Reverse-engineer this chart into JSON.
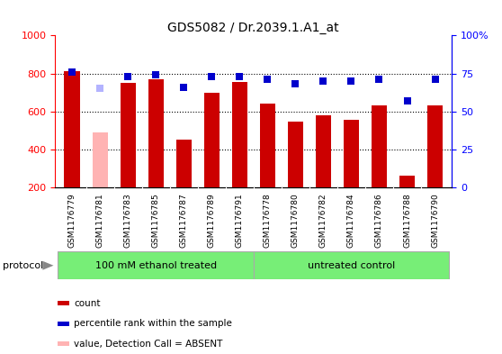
{
  "title": "GDS5082 / Dr.2039.1.A1_at",
  "samples": [
    "GSM1176779",
    "GSM1176781",
    "GSM1176783",
    "GSM1176785",
    "GSM1176787",
    "GSM1176789",
    "GSM1176791",
    "GSM1176778",
    "GSM1176780",
    "GSM1176782",
    "GSM1176784",
    "GSM1176786",
    "GSM1176788",
    "GSM1176790"
  ],
  "count_values": [
    810,
    490,
    750,
    770,
    450,
    700,
    755,
    640,
    548,
    578,
    558,
    632,
    265,
    632
  ],
  "count_absent": [
    false,
    true,
    false,
    false,
    false,
    false,
    false,
    false,
    false,
    false,
    false,
    false,
    false,
    false
  ],
  "rank_values": [
    76,
    65,
    73,
    74,
    66,
    73,
    73,
    71,
    68,
    70,
    70,
    71,
    57,
    71
  ],
  "rank_absent": [
    false,
    true,
    false,
    false,
    false,
    false,
    false,
    false,
    false,
    false,
    false,
    false,
    false,
    false
  ],
  "count_color_normal": "#cc0000",
  "count_color_absent": "#ffb3b3",
  "rank_color_normal": "#0000cc",
  "rank_color_absent": "#b3b3ff",
  "ylim_left": [
    200,
    1000
  ],
  "ylim_right": [
    0,
    100
  ],
  "yticks_left": [
    200,
    400,
    600,
    800,
    1000
  ],
  "yticks_right": [
    0,
    25,
    50,
    75,
    100
  ],
  "ytick_labels_right": [
    "0",
    "25",
    "50",
    "75",
    "100%"
  ],
  "grid_lines": [
    400,
    600,
    800
  ],
  "protocol_groups": [
    {
      "label": "100 mM ethanol treated",
      "start": 0,
      "end": 6
    },
    {
      "label": "untreated control",
      "start": 7,
      "end": 13
    }
  ],
  "protocol_label": "protocol",
  "bar_width": 0.55,
  "marker_size": 6,
  "background_color": "#ffffff",
  "label_area_color": "#d3d3d3",
  "group_color": "#77ee77",
  "group_color2": "#88ff88"
}
